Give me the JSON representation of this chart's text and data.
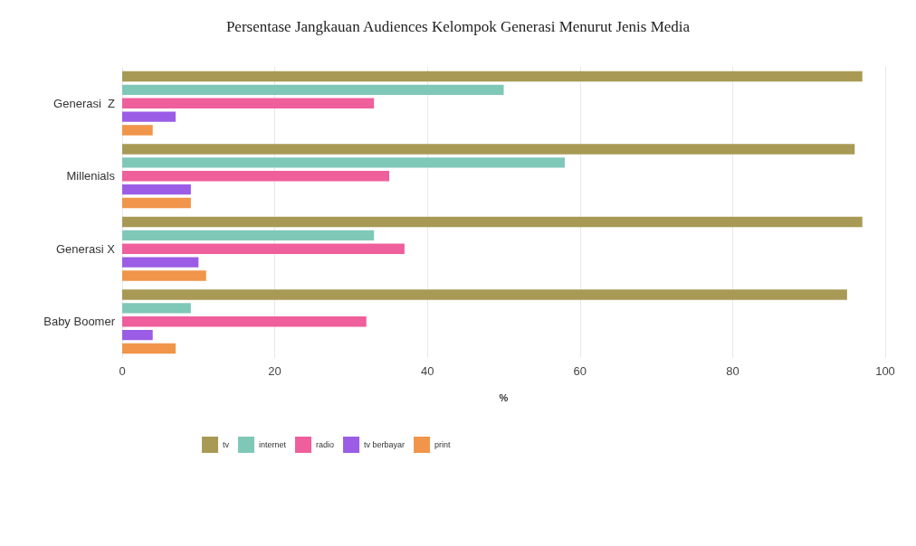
{
  "chart_data": {
    "type": "bar",
    "orientation": "horizontal",
    "title": "Persentase Jangkauan Audiences Kelompok Generasi Menurut Jenis Media",
    "xlabel": "%",
    "categories": [
      "Generasi  Z",
      "Millenials",
      "Generasi X",
      "Baby Boomer"
    ],
    "series": [
      {
        "name": "tv",
        "color": "#a89a55",
        "values": [
          97,
          96,
          97,
          95
        ]
      },
      {
        "name": "internet",
        "color": "#7fc8b8",
        "values": [
          50,
          58,
          33,
          9
        ]
      },
      {
        "name": "radio",
        "color": "#ef5f9c",
        "values": [
          33,
          35,
          37,
          32
        ]
      },
      {
        "name": "tv berbayar",
        "color": "#9b5de5",
        "values": [
          7,
          9,
          10,
          4
        ]
      },
      {
        "name": "print",
        "color": "#f0954a",
        "values": [
          4,
          9,
          11,
          7
        ]
      }
    ],
    "xlim": [
      0,
      100
    ],
    "xticks": [
      0,
      20,
      40,
      60,
      80,
      100
    ],
    "grid": "x",
    "legend": "bottom"
  }
}
